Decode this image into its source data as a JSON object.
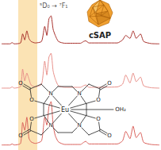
{
  "chart_data": [
    {
      "type": "line",
      "x": [
        570,
        578,
        580,
        582,
        588,
        590,
        592,
        594,
        596,
        598,
        602,
        608,
        611,
        613,
        615,
        617,
        619,
        621,
        624,
        630,
        645,
        648,
        650,
        653,
        680,
        685,
        688,
        692,
        695,
        698,
        702,
        705,
        712,
        720
      ],
      "values": [
        0.02,
        0.02,
        0.06,
        0.02,
        0.05,
        0.35,
        0.15,
        0.45,
        0.2,
        0.1,
        0.05,
        0.1,
        0.6,
        0.3,
        0.85,
        0.95,
        0.5,
        0.3,
        0.1,
        0.04,
        0.04,
        0.1,
        0.12,
        0.05,
        0.05,
        0.15,
        0.3,
        0.2,
        0.45,
        0.2,
        0.35,
        0.1,
        0.03,
        0.02
      ],
      "color": "#a8322d",
      "xlim": [
        570,
        720
      ],
      "ylim": [
        0,
        1
      ],
      "tick_labels": false,
      "grid": false,
      "annotation": {
        "text": "⁵D₀ → ⁷F₁",
        "x_range": [
          586,
          604
        ]
      }
    },
    {
      "type": "line",
      "x": [
        570,
        578,
        580,
        582,
        588,
        590,
        592,
        594,
        596,
        598,
        602,
        608,
        611,
        613,
        615,
        617,
        619,
        621,
        624,
        630,
        645,
        648,
        650,
        653,
        680,
        685,
        688,
        692,
        695,
        698,
        702,
        705,
        712,
        720
      ],
      "values": [
        0.02,
        0.02,
        0.05,
        0.02,
        0.06,
        0.5,
        0.2,
        0.4,
        0.25,
        0.1,
        0.05,
        0.12,
        0.7,
        0.35,
        0.8,
        0.9,
        0.45,
        0.25,
        0.08,
        0.04,
        0.04,
        0.08,
        0.1,
        0.04,
        0.05,
        0.12,
        0.35,
        0.15,
        0.4,
        0.18,
        0.3,
        0.08,
        0.03,
        0.02
      ],
      "color": "#e8908a",
      "xlim": [
        570,
        720
      ],
      "ylim": [
        0,
        1
      ],
      "tick_labels": false,
      "grid": false
    },
    {
      "type": "line",
      "x": [
        570,
        578,
        580,
        582,
        588,
        590,
        592,
        594,
        596,
        598,
        602,
        608,
        611,
        613,
        615,
        617,
        619,
        621,
        624,
        630,
        645,
        648,
        650,
        653,
        680,
        685,
        688,
        692,
        695,
        698,
        702,
        705,
        712,
        720
      ],
      "values": [
        0.02,
        0.02,
        0.04,
        0.02,
        0.05,
        0.45,
        0.3,
        0.55,
        0.15,
        0.08,
        0.05,
        0.1,
        0.55,
        0.4,
        0.75,
        0.85,
        0.4,
        0.2,
        0.08,
        0.03,
        0.03,
        0.07,
        0.09,
        0.04,
        0.04,
        0.1,
        0.28,
        0.14,
        0.38,
        0.16,
        0.26,
        0.07,
        0.03,
        0.02
      ],
      "color": "#d9605a",
      "xlim": [
        570,
        720
      ],
      "ylim": [
        0,
        1
      ],
      "tick_labels": false,
      "grid": false
    }
  ],
  "polyhedron": {
    "label": "cSAP",
    "color": "#f0a030"
  },
  "molecule": {
    "metal": "Eu",
    "water": "OH₂",
    "nitrogen": "N",
    "oxygen": "O"
  }
}
